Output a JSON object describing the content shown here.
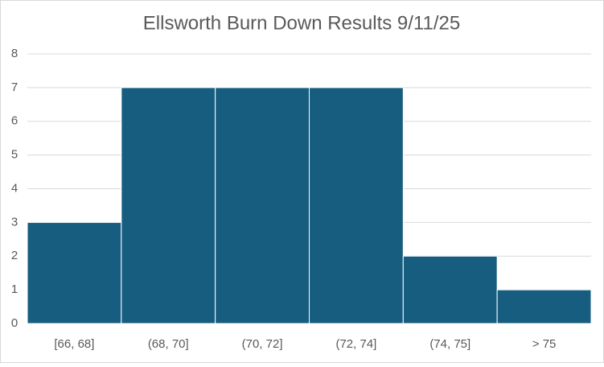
{
  "chart_data": {
    "type": "bar",
    "title": "Ellsworth Burn Down Results 9/11/25",
    "categories": [
      "[66, 68]",
      "(68, 70]",
      "(70, 72]",
      "(72, 74]",
      "(74, 75]",
      "> 75"
    ],
    "values": [
      3,
      7,
      7,
      7,
      2,
      1
    ],
    "color": "#175d80",
    "ylim": [
      0,
      8
    ],
    "yticks": [
      0,
      1,
      2,
      3,
      4,
      5,
      6,
      7,
      8
    ],
    "grid": true
  }
}
